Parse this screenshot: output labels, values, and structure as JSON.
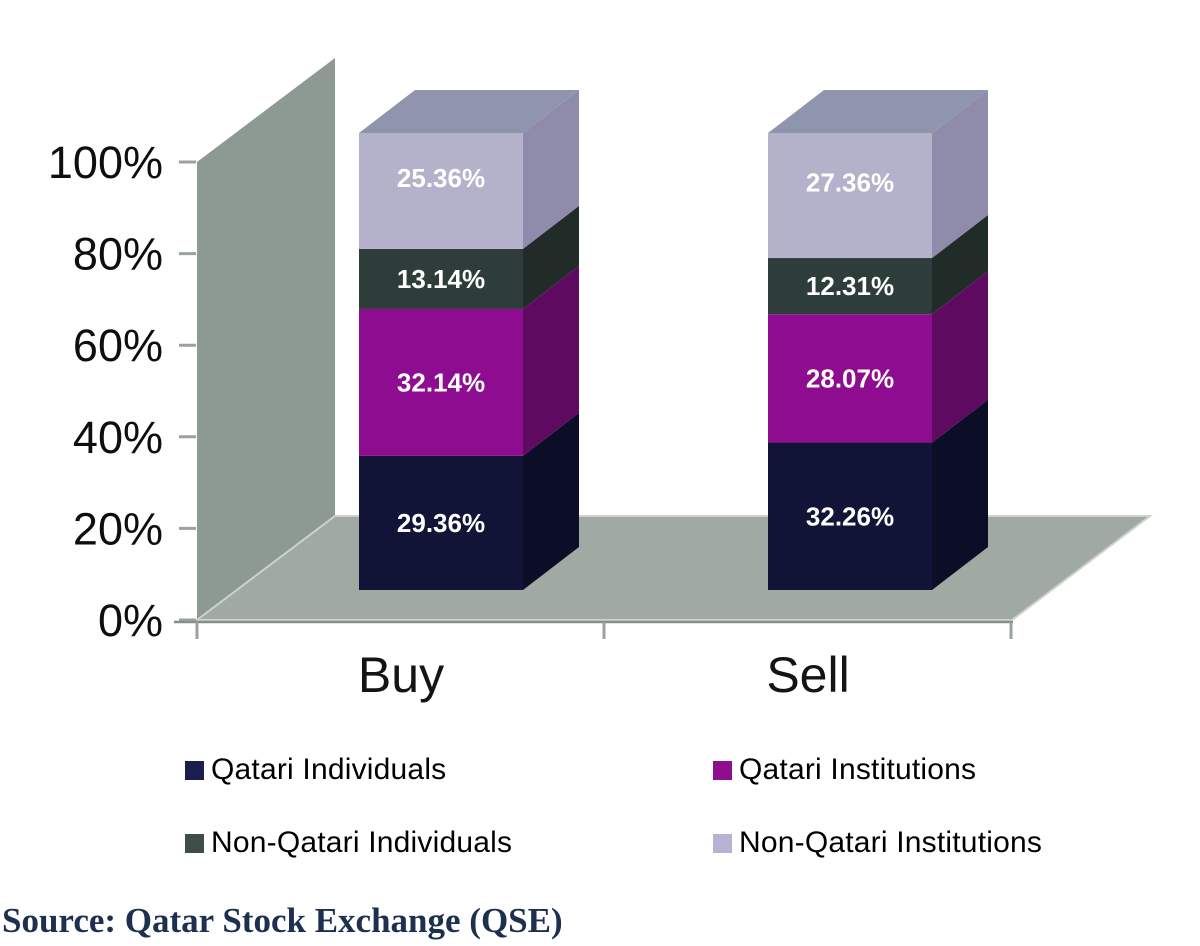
{
  "chart_data": {
    "type": "bar",
    "variant": "3d-stacked-column",
    "stacked": true,
    "categories": [
      "Buy",
      "Sell"
    ],
    "series": [
      {
        "name": "Qatari Individuals",
        "values": [
          29.36,
          32.26
        ],
        "color": "#111436",
        "side_color": "#0c0e27",
        "legend_color": "#1a1f4e"
      },
      {
        "name": "Qatari Institutions",
        "values": [
          32.14,
          28.07
        ],
        "color": "#8d0c8f",
        "side_color": "#5e0a60",
        "legend_color": "#8d0f90"
      },
      {
        "name": "Non-Qatari Individuals",
        "values": [
          13.14,
          12.31
        ],
        "color": "#2e3d39",
        "side_color": "#212c29",
        "legend_color": "#3e4d47"
      },
      {
        "name": "Non-Qatari Institutions",
        "values": [
          25.36,
          27.36
        ],
        "color": "#b4b1cb",
        "side_color": "#8e8caa",
        "legend_color": "#b5b2d2"
      }
    ],
    "value_labels": [
      [
        "29.36%",
        "32.14%",
        "13.14%",
        "25.36%"
      ],
      [
        "32.26%",
        "28.07%",
        "12.31%",
        "27.36%"
      ]
    ],
    "y_axis": {
      "ticks": [
        "0%",
        "20%",
        "40%",
        "60%",
        "80%",
        "100%"
      ],
      "min": 0,
      "max": 100
    },
    "xlabel": "",
    "ylabel": "",
    "title": "",
    "legend_position": "bottom",
    "gridlines": false
  },
  "colors": {
    "wall": "#8c9a93",
    "floor": "#a0aaa2",
    "floor_edge": "#ccd3cc",
    "bar_top": "#8f95ac",
    "axis_line": "#878f88",
    "tick": "#9aa39b",
    "axis_text": "#0e0e0e",
    "category_text": "#141414",
    "value_label_text": "#ffffff"
  },
  "source": {
    "label": "Source: Qatar Stock Exchange (QSE)",
    "color": "#1d3050"
  }
}
